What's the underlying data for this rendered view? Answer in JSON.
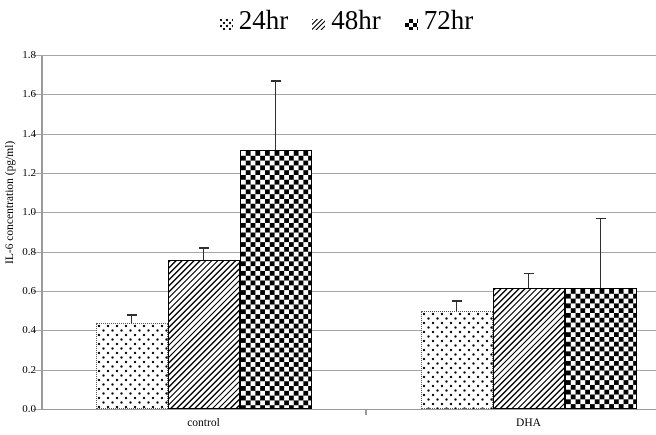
{
  "chart_data": {
    "type": "bar",
    "title": "",
    "xlabel": "",
    "ylabel": "IL-6 concentration (pg/ml)",
    "ylim": [
      0,
      1.8
    ],
    "ytick_step": 0.2,
    "ytick_format_decimals": 1,
    "grid": true,
    "legend_position": "top-center",
    "categories": [
      "control",
      "DHA"
    ],
    "series": [
      {
        "name": "24hr",
        "pattern": "dots",
        "values": [
          0.44,
          0.5
        ],
        "errors_plus": [
          0.04,
          0.05
        ]
      },
      {
        "name": "48hr",
        "pattern": "diag",
        "values": [
          0.76,
          0.62
        ],
        "errors_plus": [
          0.06,
          0.07
        ]
      },
      {
        "name": "72hr",
        "pattern": "check",
        "values": [
          1.32,
          0.62
        ],
        "errors_plus": [
          0.35,
          0.35
        ]
      }
    ],
    "colors": {
      "bar_foreground": "#000000",
      "bar_background": "#ffffff",
      "gridline": "#a6a6a6",
      "axis": "#9a9a9a",
      "text": "#000000",
      "background": "#ffffff"
    }
  }
}
